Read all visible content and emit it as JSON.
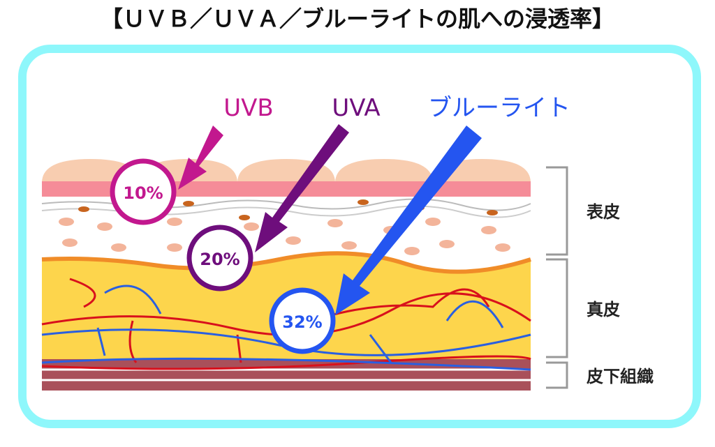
{
  "header": {
    "title": "【ＵＶＢ／ＵＶＡ／ブルーライトの肌への浸透率】"
  },
  "rays": [
    {
      "label": "UVB",
      "percent": "10%"
    },
    {
      "label": "UVA",
      "percent": "20%"
    },
    {
      "label": "ブルーライト",
      "percent": "32%"
    }
  ],
  "layers": [
    {
      "label": "表皮"
    },
    {
      "label": "真皮"
    },
    {
      "label": "皮下組織"
    }
  ]
}
